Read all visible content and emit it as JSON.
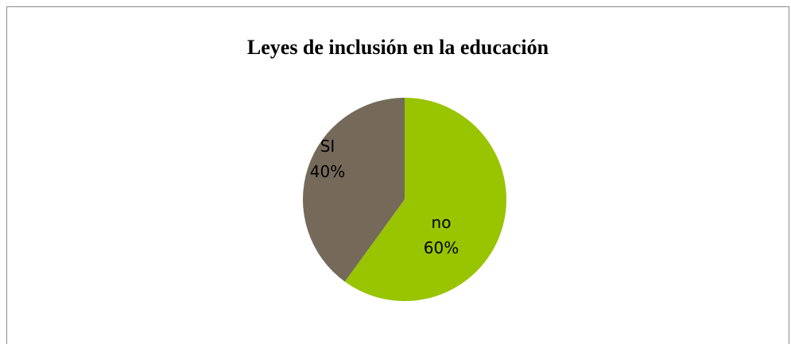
{
  "chart_data": {
    "type": "pie",
    "title": "Leyes de inclusión en la educación",
    "slices": [
      {
        "label": "no",
        "value": 60,
        "percent_label": "60%",
        "color": "#99c400"
      },
      {
        "label": "SI",
        "value": 40,
        "percent_label": "40%",
        "color": "#756a5a"
      }
    ],
    "legend": "none",
    "start_angle": "12 o'clock, clockwise"
  }
}
